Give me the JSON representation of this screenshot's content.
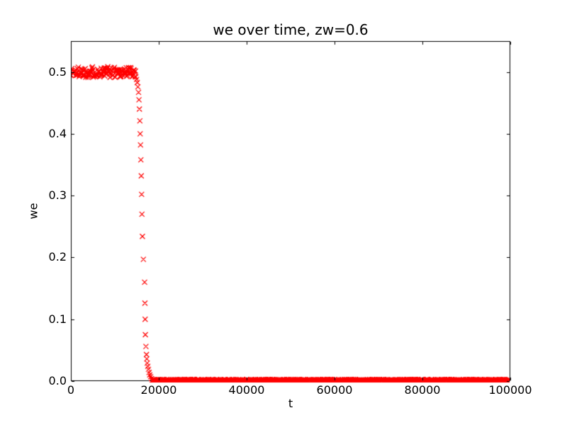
{
  "figure": {
    "background_color": "#ffffff",
    "frame_color": "#000000",
    "text_color": "#000000"
  },
  "chart_data": {
    "type": "scatter",
    "title": "we over time, zw=0.6",
    "xlabel": "t",
    "ylabel": "we",
    "xlim": [
      0,
      100000
    ],
    "ylim": [
      0,
      0.55
    ],
    "xticks": [
      0,
      20000,
      40000,
      60000,
      80000,
      100000
    ],
    "xtick_labels": [
      "0",
      "20000",
      "40000",
      "60000",
      "80000",
      "100000"
    ],
    "yticks": [
      0.0,
      0.1,
      0.2,
      0.3,
      0.4,
      0.5
    ],
    "ytick_labels": [
      "0.0",
      "0.1",
      "0.2",
      "0.3",
      "0.4",
      "0.5"
    ],
    "grid": false,
    "legend": null,
    "tick_direction": "in",
    "tick_length": 4,
    "marker": {
      "shape": "x",
      "color": "#ff0000",
      "size": 7,
      "line_width": 1.2
    },
    "series": [
      {
        "name": "we",
        "segments": {
          "high_plateau": {
            "t_start": 0,
            "t_end": 14700,
            "t_step": 100,
            "value": 0.5,
            "noise": 0.009
          },
          "drop_points": [
            [
              14800,
              0.492
            ],
            [
              14950,
              0.488
            ],
            [
              15100,
              0.483
            ],
            [
              15250,
              0.476
            ],
            [
              15400,
              0.467
            ],
            [
              15500,
              0.455
            ],
            [
              15600,
              0.44
            ],
            [
              15700,
              0.421
            ],
            [
              15770,
              0.4
            ],
            [
              15850,
              0.382
            ],
            [
              15930,
              0.358
            ],
            [
              16020,
              0.332
            ],
            [
              16100,
              0.302
            ],
            [
              16170,
              0.27
            ],
            [
              16280,
              0.234
            ],
            [
              16500,
              0.197
            ],
            [
              16780,
              0.16
            ],
            [
              16850,
              0.126
            ],
            [
              16900,
              0.1
            ],
            [
              16950,
              0.075
            ],
            [
              17080,
              0.056
            ],
            [
              17200,
              0.043
            ],
            [
              17280,
              0.036
            ],
            [
              17380,
              0.029
            ],
            [
              17500,
              0.024
            ],
            [
              17650,
              0.019
            ],
            [
              17800,
              0.014
            ],
            [
              17950,
              0.01
            ],
            [
              18150,
              0.007
            ],
            [
              18350,
              0.004
            ]
          ],
          "low_plateau": {
            "t_start": 18450,
            "t_end": 100000,
            "t_step": 100,
            "value": 0.0015,
            "noise": 0.0012
          }
        }
      }
    ]
  }
}
